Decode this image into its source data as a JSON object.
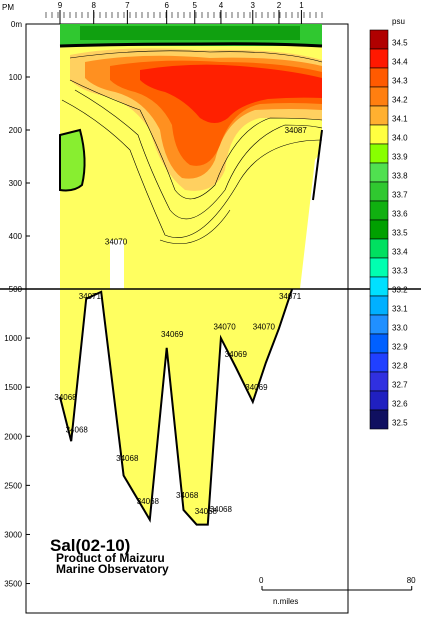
{
  "chart_data": {
    "type": "contour-section",
    "title": "Sal(02-10)",
    "subtitle_lines": [
      "Product of Maizuru",
      "Marine Observatory"
    ],
    "y_axis": {
      "ticks": [
        {
          "v": 0,
          "label": "0m"
        },
        {
          "v": 100,
          "label": "100"
        },
        {
          "v": 200,
          "label": "200"
        },
        {
          "v": 300,
          "label": "300"
        },
        {
          "v": 400,
          "label": "400"
        },
        {
          "v": 500,
          "label": "500"
        },
        {
          "v": 1000,
          "label": "1000"
        },
        {
          "v": 1500,
          "label": "1500"
        },
        {
          "v": 2000,
          "label": "2000"
        },
        {
          "v": 2500,
          "label": "2500"
        },
        {
          "v": 3000,
          "label": "3000"
        },
        {
          "v": 3500,
          "label": "3500"
        }
      ],
      "break_at": 500,
      "upper_range": [
        0,
        500
      ],
      "lower_range": [
        500,
        3800
      ]
    },
    "x_axis_distance_nmi": [
      0,
      140
    ],
    "station_prefix": "PM",
    "stations": [
      {
        "label": "9",
        "x": 0
      },
      {
        "label": "8",
        "x": 18
      },
      {
        "label": "7",
        "x": 36
      },
      {
        "label": "6",
        "x": 57
      },
      {
        "label": "5",
        "x": 72
      },
      {
        "label": "4",
        "x": 86
      },
      {
        "label": "3",
        "x": 103
      },
      {
        "label": "2",
        "x": 117
      },
      {
        "label": "1",
        "x": 129
      }
    ],
    "scale_bar": {
      "start_label": "0",
      "end_label": "80",
      "unit": "n.miles",
      "nmi": 80
    },
    "colorbar": {
      "unit": "psu",
      "levels": [
        "34.5",
        "34.4",
        "34.3",
        "34.2",
        "34.1",
        "34.0",
        "33.9",
        "33.8",
        "33.7",
        "33.6",
        "33.5",
        "33.4",
        "33.3",
        "33.2",
        "33.1",
        "33.0",
        "32.9",
        "32.8",
        "32.7",
        "32.6",
        "32.5"
      ],
      "colors": [
        "#b00000",
        "#ff1800",
        "#ff5a00",
        "#ff7f10",
        "#ffb030",
        "#ffff40",
        "#88ff00",
        "#50e050",
        "#30c830",
        "#10b010",
        "#00a000",
        "#00e060",
        "#00ffb0",
        "#00e0ff",
        "#00b0ff",
        "#2090ff",
        "#0060ff",
        "#2040ff",
        "#3030e0",
        "#2020c0",
        "#101060"
      ]
    },
    "bottom_profile": [
      {
        "x": 0,
        "d": 1600
      },
      {
        "x": 6,
        "d": 2050
      },
      {
        "x": 14,
        "d": 600
      },
      {
        "x": 22,
        "d": 530
      },
      {
        "x": 34,
        "d": 2400
      },
      {
        "x": 48,
        "d": 2850
      },
      {
        "x": 57,
        "d": 1100
      },
      {
        "x": 66,
        "d": 2750
      },
      {
        "x": 73,
        "d": 2900
      },
      {
        "x": 79,
        "d": 2900
      },
      {
        "x": 86,
        "d": 1000
      },
      {
        "x": 94,
        "d": 1300
      },
      {
        "x": 103,
        "d": 1650
      },
      {
        "x": 110,
        "d": 1250
      },
      {
        "x": 117,
        "d": 900
      },
      {
        "x": 124,
        "d": 500
      },
      {
        "x": 129,
        "d": 220
      }
    ],
    "annotations": [
      {
        "text": "34087",
        "x": 120,
        "d": 200
      },
      {
        "text": "34070",
        "x": 24,
        "d": 410
      },
      {
        "text": "34071",
        "x": 10,
        "d": 570
      },
      {
        "text": "34071",
        "x": 117,
        "d": 570
      },
      {
        "text": "34069",
        "x": 54,
        "d": 960
      },
      {
        "text": "34070",
        "x": 82,
        "d": 880
      },
      {
        "text": "34070",
        "x": 103,
        "d": 880
      },
      {
        "text": "34069",
        "x": 88,
        "d": 1160
      },
      {
        "text": "34069",
        "x": 99,
        "d": 1500
      },
      {
        "text": "34068",
        "x": -3,
        "d": 1600
      },
      {
        "text": "34068",
        "x": 3,
        "d": 1930
      },
      {
        "text": "34068",
        "x": 30,
        "d": 2220
      },
      {
        "text": "34068",
        "x": 41,
        "d": 2660
      },
      {
        "text": "34068",
        "x": 62,
        "d": 2600
      },
      {
        "text": "34068",
        "x": 72,
        "d": 2760
      },
      {
        "text": "34068",
        "x": 80,
        "d": 2740
      }
    ]
  }
}
